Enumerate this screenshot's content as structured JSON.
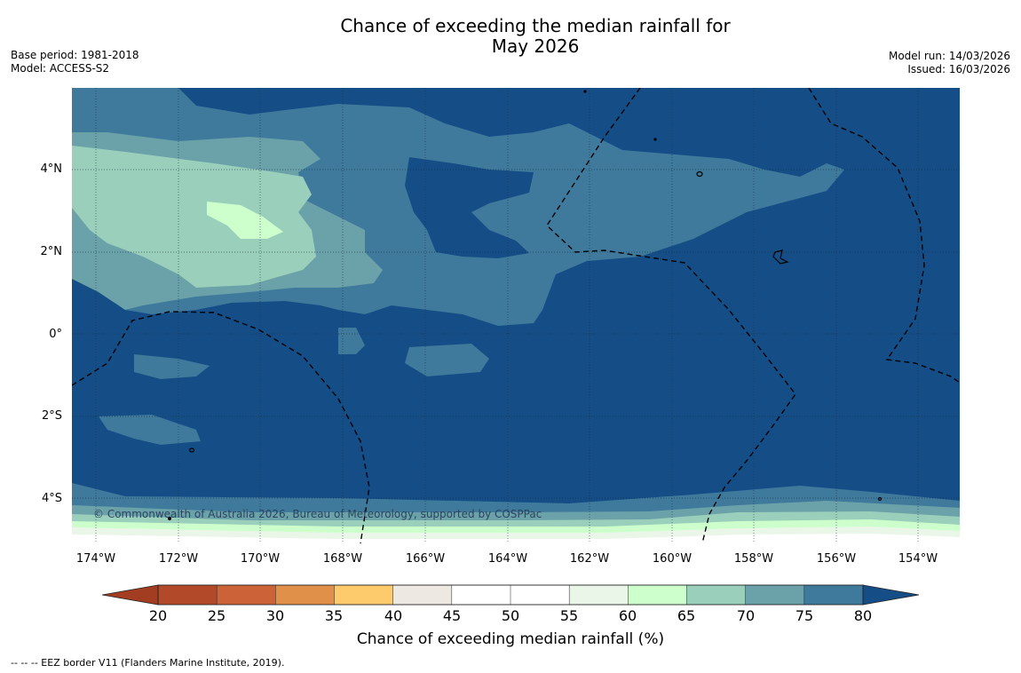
{
  "title": {
    "line1": "Chance of exceeding the median rainfall for",
    "line2": "May 2026"
  },
  "meta": {
    "base_period": "Base period: 1981-2018",
    "model": "Model: ACCESS-S2",
    "model_run": "Model run: 14/03/2026",
    "issued": "Issued: 16/03/2026"
  },
  "map": {
    "copyright": "© Commonwealth of Australia 2026, Bureau of Meteorology, supported by COSPPac",
    "lat_labels": [
      "4°N",
      "2°N",
      "0°",
      "2°S",
      "4°S"
    ],
    "lon_labels": [
      "174°W",
      "172°W",
      "170°W",
      "168°W",
      "166°W",
      "164°W",
      "162°W",
      "160°W",
      "158°W",
      "156°W",
      "154°W"
    ],
    "colors": {
      "ocean_80": "#154e87",
      "c75": "#3f7a9c",
      "c70": "#6ba1a8",
      "c65": "#9acfbb",
      "c60": "#ccffcc",
      "c55": "#eaf7e8",
      "land_outline": "#000000"
    }
  },
  "colorbar": {
    "ticks": [
      "20",
      "25",
      "30",
      "35",
      "40",
      "45",
      "50",
      "55",
      "60",
      "65",
      "70",
      "75",
      "80"
    ],
    "colors": [
      "#a23d22",
      "#b24a2a",
      "#cc6338",
      "#e09048",
      "#fdcb6b",
      "#ede8e2",
      "#ffffff",
      "#ffffff",
      "#eaf7e8",
      "#ccffcc",
      "#9acfbb",
      "#6ba1a8",
      "#3f7a9c",
      "#154e87"
    ],
    "label": "Chance of exceeding median rainfall (%)"
  },
  "footnote": "--  --  -- EEZ border V11 (Flanders Marine Institute, 2019)."
}
